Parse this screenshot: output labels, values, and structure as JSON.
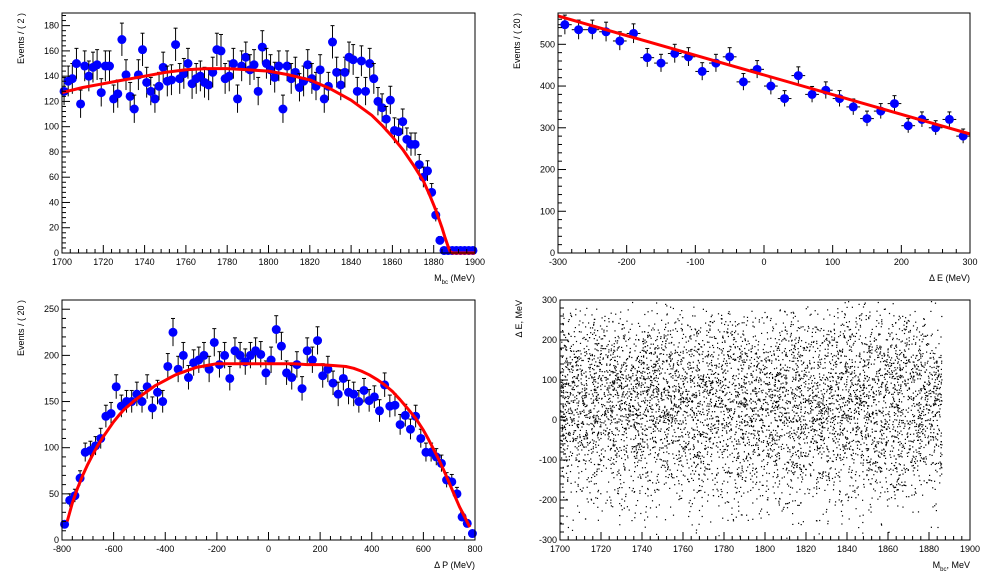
{
  "chart_data": [
    {
      "type": "scatter",
      "xlabel_main": "M",
      "xlabel_sub": "bc",
      "xlabel_unit": " (MeV)",
      "ylabel": "Events / ( 2 )",
      "xlim": [
        1700,
        1900
      ],
      "ylim": [
        0,
        190
      ],
      "xticks": [
        1700,
        1720,
        1740,
        1760,
        1780,
        1800,
        1820,
        1840,
        1860,
        1880,
        1900
      ],
      "yticks": [
        0,
        20,
        40,
        60,
        80,
        100,
        120,
        140,
        160,
        180
      ],
      "series": [
        {
          "style": "points",
          "color": "#0000ff",
          "err": "y",
          "x": [
            1701,
            1703,
            1705,
            1707,
            1709,
            1711,
            1713,
            1715,
            1717,
            1719,
            1721,
            1723,
            1725,
            1727,
            1729,
            1731,
            1733,
            1735,
            1737,
            1739,
            1741,
            1743,
            1745,
            1747,
            1749,
            1751,
            1753,
            1755,
            1757,
            1759,
            1761,
            1763,
            1765,
            1767,
            1769,
            1771,
            1773,
            1775,
            1777,
            1779,
            1781,
            1783,
            1785,
            1787,
            1789,
            1791,
            1793,
            1795,
            1797,
            1799,
            1801,
            1803,
            1805,
            1807,
            1809,
            1811,
            1813,
            1815,
            1817,
            1819,
            1821,
            1823,
            1825,
            1827,
            1829,
            1831,
            1833,
            1835,
            1837,
            1839,
            1841,
            1843,
            1845,
            1847,
            1849,
            1851,
            1853,
            1855,
            1857,
            1859,
            1861,
            1863,
            1865,
            1867,
            1869,
            1871,
            1873,
            1875,
            1877,
            1879,
            1881,
            1883,
            1885,
            1887,
            1889,
            1891,
            1893,
            1895,
            1897,
            1899
          ],
          "y": [
            128,
            136,
            138,
            150,
            118,
            148,
            140,
            147,
            149,
            127,
            148,
            148,
            122,
            126,
            169,
            141,
            124,
            114,
            141,
            161,
            135,
            128,
            122,
            132,
            147,
            136,
            137,
            165,
            138,
            142,
            150,
            134,
            138,
            140,
            135,
            133,
            143,
            161,
            160,
            138,
            140,
            150,
            122,
            148,
            155,
            145,
            149,
            128,
            163,
            150,
            145,
            139,
            148,
            114,
            148,
            138,
            143,
            131,
            136,
            149,
            138,
            132,
            145,
            122,
            132,
            167,
            143,
            133,
            143,
            155,
            153,
            128,
            152,
            128,
            150,
            138,
            120,
            115,
            106,
            121,
            97,
            96,
            104,
            90,
            86,
            86,
            70,
            60,
            65,
            48,
            30,
            10,
            2,
            2,
            2,
            2,
            2,
            2,
            2,
            2
          ],
          "yerr": [
            11,
            12,
            12,
            12,
            11,
            12,
            12,
            12,
            12,
            11,
            12,
            12,
            11,
            11,
            13,
            12,
            11,
            11,
            12,
            13,
            12,
            11,
            11,
            11,
            12,
            12,
            12,
            13,
            12,
            12,
            12,
            12,
            12,
            12,
            12,
            12,
            12,
            13,
            13,
            12,
            12,
            12,
            11,
            12,
            12,
            12,
            12,
            11,
            13,
            12,
            12,
            12,
            12,
            11,
            12,
            12,
            12,
            11,
            12,
            12,
            12,
            11,
            12,
            11,
            11,
            13,
            12,
            12,
            12,
            12,
            12,
            11,
            12,
            11,
            12,
            12,
            11,
            11,
            10,
            11,
            10,
            10,
            10,
            9,
            9,
            9,
            8,
            8,
            8,
            7,
            5,
            3,
            1.5,
            1.5,
            1.5,
            1.5,
            1.5,
            1.5,
            1.5,
            1.5
          ]
        },
        {
          "style": "line",
          "color": "#ff0000",
          "x": [
            1700,
            1710,
            1720,
            1730,
            1740,
            1750,
            1760,
            1770,
            1780,
            1790,
            1800,
            1810,
            1820,
            1830,
            1840,
            1850,
            1855,
            1860,
            1865,
            1870,
            1875,
            1878,
            1881,
            1884,
            1885.5,
            1887,
            1888,
            1888.8,
            1889.2,
            1889.6,
            1890,
            1895,
            1900
          ],
          "y": [
            127,
            131,
            134,
            137,
            140,
            143,
            145,
            146,
            146,
            145,
            144,
            141,
            137,
            130,
            121,
            109,
            101,
            92,
            82,
            70,
            57,
            46,
            34,
            20,
            12,
            5,
            1,
            0.2,
            0,
            0,
            0,
            0,
            0
          ]
        }
      ]
    },
    {
      "type": "scatter",
      "xlabel_main": "Δ E (MeV)",
      "ylabel": "Events / ( 20 )",
      "xlim": [
        -300,
        300
      ],
      "ylim": [
        0,
        575
      ],
      "xticks": [
        -300,
        -200,
        -100,
        0,
        100,
        200,
        300
      ],
      "yticks": [
        0,
        100,
        200,
        300,
        400,
        500
      ],
      "series": [
        {
          "style": "points",
          "color": "#0000ff",
          "err": "xy",
          "xerr": 10,
          "x": [
            -290,
            -270,
            -250,
            -230,
            -210,
            -190,
            -170,
            -150,
            -130,
            -110,
            -90,
            -70,
            -50,
            -30,
            -10,
            10,
            30,
            50,
            70,
            90,
            110,
            130,
            150,
            170,
            190,
            210,
            230,
            250,
            270,
            290
          ],
          "y": [
            547,
            535,
            535,
            530,
            508,
            526,
            468,
            455,
            478,
            470,
            435,
            455,
            470,
            410,
            440,
            400,
            370,
            425,
            380,
            390,
            370,
            350,
            322,
            340,
            358,
            305,
            320,
            300,
            320,
            280
          ],
          "yerr": [
            23,
            23,
            23,
            23,
            22,
            23,
            22,
            21,
            22,
            22,
            21,
            21,
            22,
            20,
            21,
            20,
            19,
            21,
            19,
            20,
            19,
            19,
            18,
            18,
            19,
            17,
            18,
            17,
            18,
            17
          ]
        },
        {
          "style": "line",
          "color": "#ff0000",
          "x": [
            -300,
            300
          ],
          "y": [
            568,
            285
          ]
        }
      ]
    },
    {
      "type": "scatter",
      "xlabel_main": "Δ P (MeV)",
      "ylabel": "Events / ( 20 )",
      "xlim": [
        -800,
        800
      ],
      "ylim": [
        0,
        260
      ],
      "xticks": [
        -800,
        -600,
        -400,
        -200,
        0,
        200,
        400,
        600,
        800
      ],
      "yticks": [
        0,
        50,
        100,
        150,
        200,
        250
      ],
      "series": [
        {
          "style": "points",
          "color": "#0000ff",
          "err": "y",
          "x": [
            -790,
            -770,
            -750,
            -730,
            -710,
            -690,
            -670,
            -650,
            -630,
            -610,
            -590,
            -570,
            -550,
            -530,
            -510,
            -490,
            -470,
            -450,
            -430,
            -410,
            -390,
            -370,
            -350,
            -330,
            -310,
            -290,
            -270,
            -250,
            -230,
            -210,
            -190,
            -170,
            -150,
            -130,
            -110,
            -90,
            -70,
            -50,
            -30,
            -10,
            10,
            30,
            50,
            70,
            90,
            110,
            130,
            150,
            170,
            190,
            210,
            230,
            250,
            270,
            290,
            310,
            330,
            350,
            370,
            390,
            410,
            430,
            450,
            470,
            490,
            510,
            530,
            550,
            570,
            590,
            610,
            630,
            650,
            670,
            690,
            710,
            730,
            750,
            770,
            790
          ],
          "y": [
            17,
            43,
            48,
            67,
            95,
            97,
            102,
            110,
            134,
            137,
            166,
            145,
            150,
            150,
            158,
            150,
            166,
            143,
            160,
            150,
            188,
            225,
            185,
            200,
            176,
            192,
            195,
            200,
            185,
            214,
            190,
            200,
            175,
            205,
            200,
            193,
            200,
            205,
            201,
            181,
            195,
            228,
            210,
            181,
            176,
            190,
            164,
            205,
            195,
            216,
            178,
            185,
            170,
            158,
            175,
            160,
            158,
            150,
            162,
            151,
            155,
            140,
            168,
            145,
            146,
            125,
            135,
            120,
            134,
            110,
            95,
            95,
            90,
            83,
            65,
            63,
            50,
            25,
            18,
            7
          ],
          "yerr": [
            4,
            7,
            7,
            8,
            10,
            10,
            10,
            11,
            12,
            12,
            13,
            12,
            12,
            12,
            13,
            12,
            13,
            12,
            13,
            12,
            14,
            15,
            14,
            14,
            13,
            14,
            14,
            14,
            14,
            15,
            14,
            14,
            13,
            14,
            14,
            14,
            14,
            14,
            14,
            13,
            14,
            15,
            15,
            13,
            13,
            14,
            13,
            14,
            14,
            15,
            13,
            14,
            13,
            13,
            13,
            13,
            13,
            12,
            13,
            12,
            12,
            12,
            13,
            12,
            12,
            11,
            12,
            11,
            12,
            10,
            10,
            10,
            9,
            9,
            8,
            8,
            7,
            5,
            4,
            3
          ]
        },
        {
          "style": "line",
          "color": "#ff0000",
          "x": [
            -780,
            -760,
            -740,
            -720,
            -700,
            -680,
            -660,
            -640,
            -620,
            -600,
            -580,
            -560,
            -540,
            -520,
            -500,
            -480,
            -460,
            -440,
            -420,
            -400,
            -380,
            -360,
            -340,
            -320,
            -300,
            -280,
            -260,
            -240,
            -220,
            -200,
            -150,
            -100,
            -50,
            0,
            50,
            100,
            150,
            200,
            250,
            300,
            330,
            360,
            390,
            420,
            450,
            480,
            510,
            540,
            570,
            600,
            620,
            640,
            660,
            680,
            700,
            720,
            740,
            760,
            780
          ],
          "y": [
            20,
            40,
            56,
            70,
            82,
            93,
            103,
            112,
            120,
            128,
            135,
            141,
            146,
            151,
            155,
            159,
            163,
            167,
            170,
            173,
            176,
            179,
            181,
            183,
            185,
            187,
            188,
            189,
            190,
            191,
            191,
            191,
            191,
            191,
            191,
            191,
            190,
            190,
            189,
            188,
            186,
            183,
            179,
            174,
            168,
            161,
            152,
            142,
            132,
            119,
            109,
            98,
            87,
            75,
            62,
            49,
            36,
            25,
            14
          ]
        }
      ]
    },
    {
      "type": "scatter",
      "xlabel_main": "M",
      "xlabel_sub": "bc",
      "xlabel_unit": ", MeV",
      "ylabel": "Δ E, MeV",
      "xlim": [
        1700,
        1900
      ],
      "ylim": [
        -300,
        300
      ],
      "xticks": [
        1700,
        1720,
        1740,
        1760,
        1780,
        1800,
        1820,
        1840,
        1860,
        1880,
        1900
      ],
      "yticks": [
        -300,
        -200,
        -100,
        0,
        100,
        200,
        300
      ],
      "series": [
        {
          "style": "density",
          "color": "#000000",
          "x_range": [
            1700,
            1886
          ],
          "y_range": [
            -300,
            300
          ],
          "dots": 6500
        }
      ]
    }
  ]
}
